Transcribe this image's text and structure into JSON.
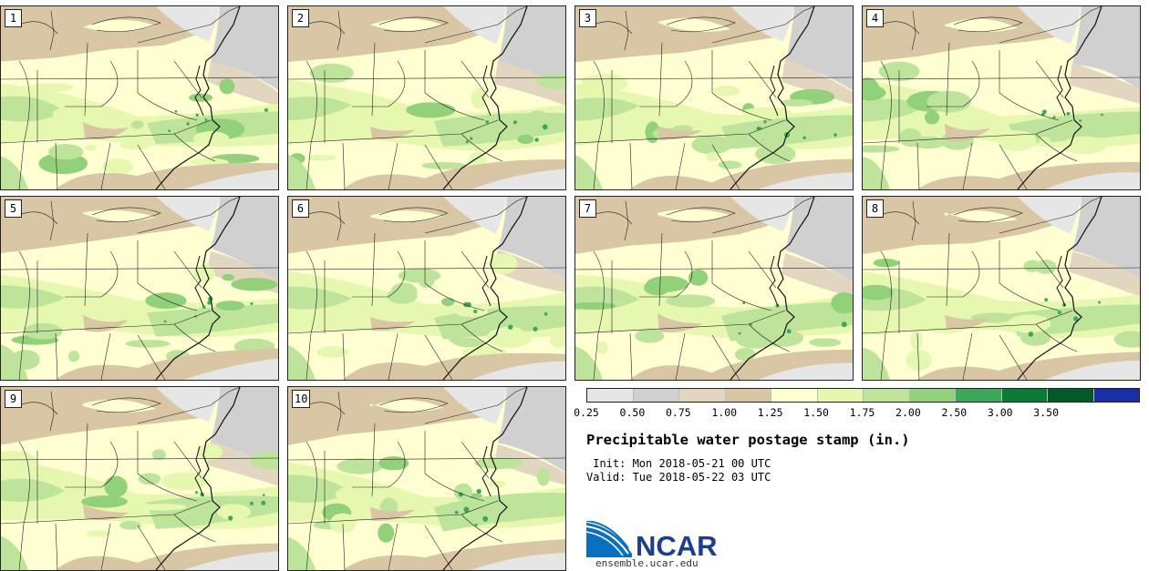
{
  "stamps": [
    {
      "label": "1"
    },
    {
      "label": "2"
    },
    {
      "label": "3"
    },
    {
      "label": "4"
    },
    {
      "label": "5"
    },
    {
      "label": "6"
    },
    {
      "label": "7"
    },
    {
      "label": "8"
    },
    {
      "label": "9"
    },
    {
      "label": "10"
    }
  ],
  "colorbar": {
    "colors": [
      "#e6e6e6",
      "#d0d0d0",
      "#e2d6c0",
      "#d8c6a4",
      "#ffffd2",
      "#e6f7b0",
      "#bde49a",
      "#92d07a",
      "#3ea85a",
      "#0b7a34",
      "#035a28",
      "#1a2fa6"
    ],
    "ticks": [
      "0.25",
      "0.50",
      "0.75",
      "1.00",
      "1.25",
      "1.50",
      "1.75",
      "2.00",
      "2.50",
      "3.00",
      "3.50"
    ]
  },
  "title": "Precipitable water postage stamp (in.)",
  "init_line": " Init: Mon 2018-05-21 00 UTC",
  "valid_line": "Valid: Tue 2018-05-22 03 UTC",
  "logo": {
    "text": "NCAR",
    "url": "ensemble.ucar.edu"
  }
}
